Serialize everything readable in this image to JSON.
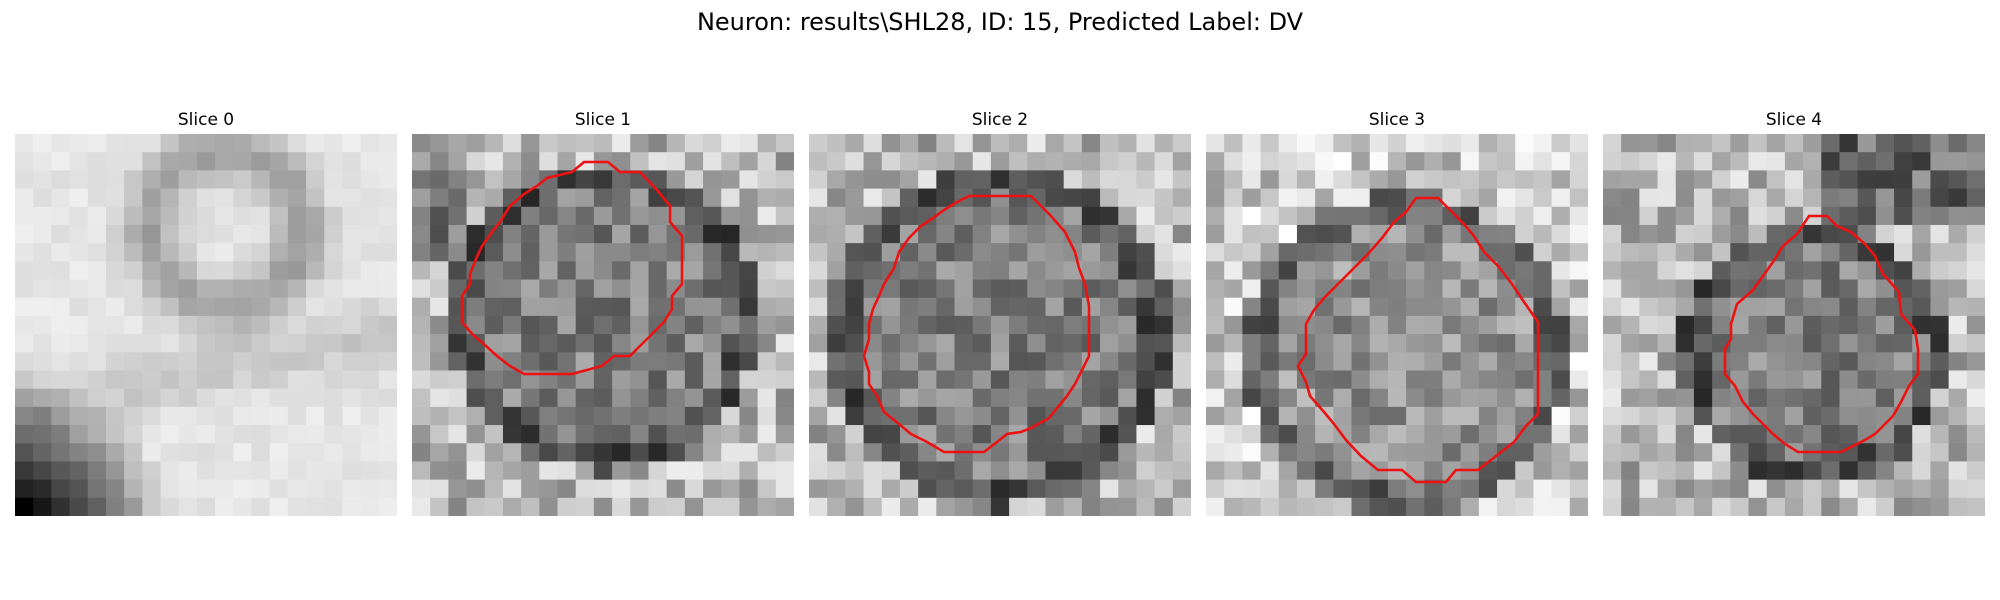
{
  "figure": {
    "title": "Neuron: results\\SHL28, ID: 15, Predicted Label: DV",
    "contour_color": "#ee1111"
  },
  "panels": [
    {
      "title": "Slice 0",
      "has_contour": false,
      "pixel_pattern": "soft-bright-tissue-with-dark-lower-left-corner"
    },
    {
      "title": "Slice 1",
      "has_contour": true,
      "pixel_pattern": "grainy-gray-soma-with-dark-rim"
    },
    {
      "title": "Slice 2",
      "has_contour": true,
      "pixel_pattern": "grainy-gray-soma-with-dark-rim"
    },
    {
      "title": "Slice 3",
      "has_contour": true,
      "pixel_pattern": "grainy-gray-soma-lighter"
    },
    {
      "title": "Slice 4",
      "has_contour": true,
      "pixel_pattern": "grainy-gray-soma-small"
    }
  ]
}
